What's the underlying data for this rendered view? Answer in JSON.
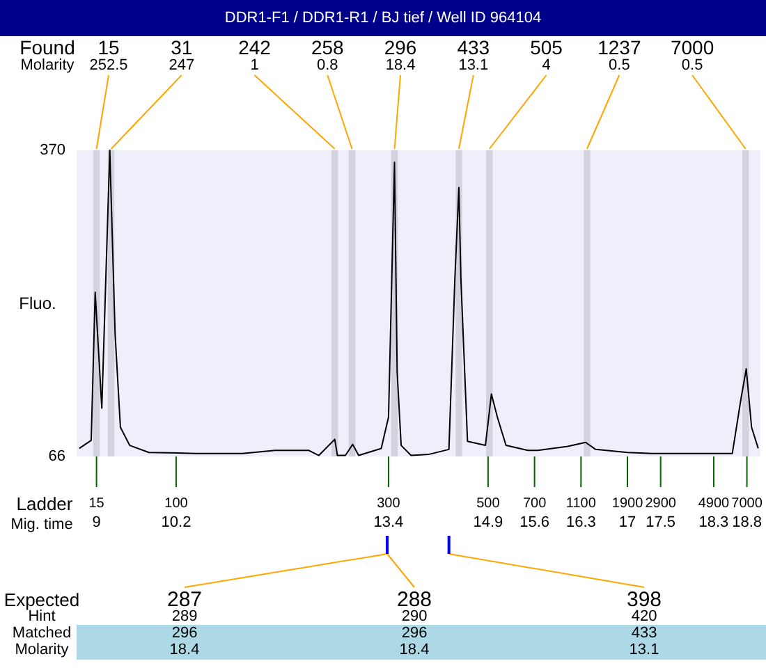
{
  "chart_data": {
    "type": "line",
    "title": "DDR1-F1 / DDR1-R1 / BJ tief / Well ID 964104",
    "ylabel": "Fluo.",
    "xlabel": "Mig. time",
    "xlim": [
      8.7,
      19.0
    ],
    "xticks": [
      9,
      10.2,
      13.4,
      14.9,
      15.6,
      16.3,
      17,
      17.5,
      18.3,
      18.8
    ],
    "ylim": [
      66,
      370
    ],
    "yticks": [
      66,
      370
    ],
    "series": [
      {
        "color": "#000000",
        "x": [
          8.74,
          8.92,
          8.98,
          9.08,
          9.2,
          9.28,
          9.36,
          9.5,
          9.79,
          10.5,
          11.2,
          11.69,
          12.2,
          12.35,
          12.59,
          12.63,
          12.75,
          12.86,
          12.95,
          13.29,
          13.4,
          13.49,
          13.53,
          13.59,
          13.74,
          14.0,
          14.31,
          14.4,
          14.46,
          14.49,
          14.59,
          14.86,
          14.95,
          15.04,
          15.17,
          15.5,
          15.65,
          16.1,
          16.37,
          16.52,
          17.0,
          17.37,
          18.0,
          18.58,
          18.71,
          18.79,
          18.87,
          18.97
        ],
        "values": [
          74,
          82,
          229,
          114,
          370,
          188,
          95,
          77,
          70,
          69,
          69,
          72,
          72,
          67,
          83,
          67,
          67,
          78,
          67,
          74,
          105,
          358,
          150,
          77,
          67,
          68,
          73,
          243,
          333,
          243,
          81,
          77,
          128,
          105,
          77,
          72,
          72,
          76,
          80,
          73,
          70,
          69,
          69,
          69,
          123,
          153,
          95,
          74
        ]
      }
    ],
    "bands": [
      {
        "axis": "x",
        "from": 8.95,
        "to": 9.05,
        "label": "15",
        "color": "#d3d3e0"
      },
      {
        "axis": "x",
        "from": 9.17,
        "to": 9.27,
        "label": "31",
        "color": "#d3d3e0"
      },
      {
        "axis": "x",
        "from": 12.54,
        "to": 12.64,
        "label": "242",
        "color": "#d3d3e0"
      },
      {
        "axis": "x",
        "from": 12.8,
        "to": 12.9,
        "label": "258",
        "color": "#d3d3e0"
      },
      {
        "axis": "x",
        "from": 13.44,
        "to": 13.54,
        "label": "296",
        "color": "#d3d3e0"
      },
      {
        "axis": "x",
        "from": 14.41,
        "to": 14.51,
        "label": "433",
        "color": "#d3d3e0"
      },
      {
        "axis": "x",
        "from": 14.87,
        "to": 14.97,
        "label": "505",
        "color": "#d3d3e0"
      },
      {
        "axis": "x",
        "from": 16.34,
        "to": 16.44,
        "label": "1237",
        "color": "#d3d3e0"
      },
      {
        "axis": "x",
        "from": 18.73,
        "to": 18.83,
        "label": "7000",
        "color": "#d3d3e0"
      }
    ],
    "annotations": [
      "Found",
      "Molarity",
      "252.5",
      "247",
      "1",
      "0.8",
      "18.4",
      "13.1",
      "4",
      "0.5",
      "0.5",
      "Ladder",
      {
        "text": "15",
        "x": 9,
        "y": 66
      },
      {
        "text": "100",
        "x": 10.2,
        "y": 66
      },
      {
        "text": "300",
        "x": 13.4,
        "y": 66
      },
      {
        "text": "500",
        "x": 14.9,
        "y": 66
      },
      {
        "text": "700",
        "x": 15.6,
        "y": 66
      },
      {
        "text": "1100",
        "x": 16.3,
        "y": 66
      },
      {
        "text": "1900",
        "x": 17,
        "y": 66
      },
      {
        "text": "2900",
        "x": 17.5,
        "y": 66
      },
      {
        "text": "4900",
        "x": 18.3,
        "y": 66
      },
      {
        "text": "7000",
        "x": 18.8,
        "y": 66
      },
      "Expected",
      "Hint",
      "Matched",
      "Molarity",
      {
        "text": "287",
        "x": 13.38
      },
      {
        "text": "288",
        "x": 13.38
      },
      {
        "text": "398",
        "x": 14.31
      },
      "289",
      "290",
      "420",
      "296",
      "296",
      "433",
      "18.4",
      "18.4",
      "13.1"
    ]
  }
}
